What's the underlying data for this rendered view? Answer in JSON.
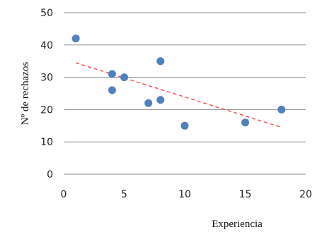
{
  "chart_data": {
    "type": "scatter",
    "xlabel": "Experiencia",
    "ylabel": "Nº de rechazos",
    "xlim": [
      0,
      20
    ],
    "ylim": [
      0,
      50
    ],
    "x_ticks": [
      "0",
      "5",
      "10",
      "15",
      "20"
    ],
    "y_ticks": [
      "0",
      "10",
      "20",
      "30",
      "40",
      "50"
    ],
    "grid": "horizontal",
    "series": [
      {
        "points": [
          {
            "x": 1,
            "y": 42
          },
          {
            "x": 4,
            "y": 31
          },
          {
            "x": 4,
            "y": 26
          },
          {
            "x": 5,
            "y": 30
          },
          {
            "x": 7,
            "y": 22
          },
          {
            "x": 8,
            "y": 35
          },
          {
            "x": 8,
            "y": 23
          },
          {
            "x": 10,
            "y": 15
          },
          {
            "x": 15,
            "y": 16
          },
          {
            "x": 18,
            "y": 20
          }
        ]
      }
    ],
    "trendline": {
      "type": "linear",
      "style": "dashed",
      "x": [
        1,
        18
      ],
      "y": [
        34.5,
        14.5
      ]
    },
    "colors": {
      "points": "#4f81bd",
      "trendline": "#ff4d4d",
      "grid": "#8a8a8a"
    }
  }
}
